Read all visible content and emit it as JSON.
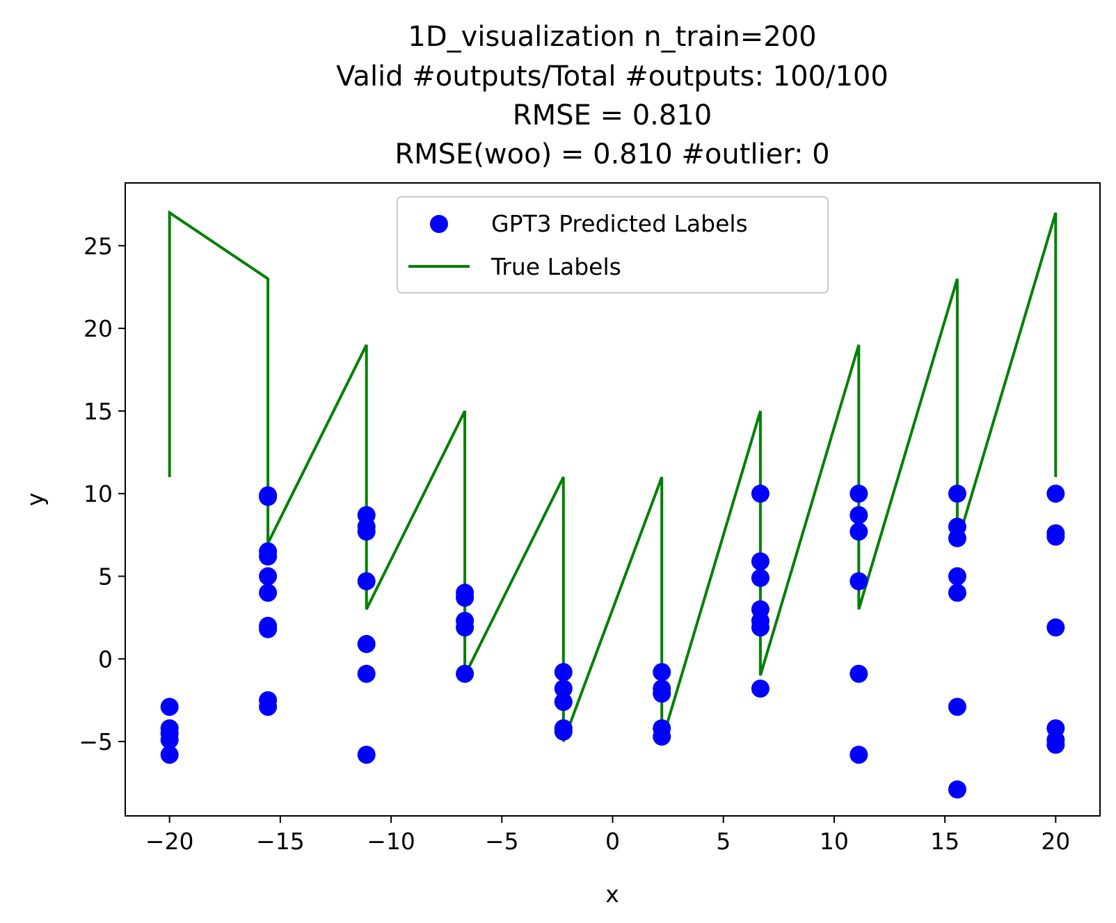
{
  "chart_data": {
    "type": "scatter",
    "title_lines": [
      "1D_visualization  n_train=200",
      "Valid #outputs/Total #outputs: 100/100",
      "RMSE       = 0.810",
      "RMSE(woo) = 0.810   #outlier: 0"
    ],
    "xlabel": "x",
    "ylabel": "y",
    "xlim": [
      -22,
      22
    ],
    "ylim": [
      -9.5,
      28.8
    ],
    "xticks": [
      -20,
      -15,
      -10,
      -5,
      0,
      5,
      10,
      15,
      20
    ],
    "xtick_labels": [
      "−20",
      "−15",
      "−10",
      "−5",
      "0",
      "5",
      "10",
      "15",
      "20"
    ],
    "yticks": [
      -5,
      0,
      5,
      10,
      15,
      20,
      25
    ],
    "ytick_labels": [
      "−5",
      "0",
      "5",
      "10",
      "15",
      "20",
      "25"
    ],
    "grid": false,
    "legend": {
      "placement": "top-center",
      "entries": [
        "GPT3 Predicted Labels",
        "True Labels"
      ]
    },
    "colors": {
      "scatter": "#0000ff",
      "line": "#008000"
    },
    "true_line": {
      "name": "True Labels",
      "x": [
        -20,
        -20,
        -15.56,
        -15.56,
        -11.11,
        -11.11,
        -6.67,
        -6.67,
        -2.22,
        -2.22,
        2.22,
        2.22,
        6.67,
        6.67,
        11.11,
        11.11,
        15.56,
        15.56,
        20,
        20
      ],
      "y": [
        11,
        27,
        23,
        7,
        19,
        3,
        15,
        -1,
        11,
        -5,
        11,
        -5,
        15,
        -1,
        19,
        3,
        23,
        7,
        27,
        11
      ]
    },
    "series": [
      {
        "name": "GPT3 Predicted Labels",
        "points": [
          [
            -20,
            -2.9
          ],
          [
            -20,
            -4.2
          ],
          [
            -20,
            -4.5
          ],
          [
            -20,
            -4.9
          ],
          [
            -20,
            -5.8
          ],
          [
            -15.56,
            9.8
          ],
          [
            -15.56,
            9.9
          ],
          [
            -15.56,
            6.5
          ],
          [
            -15.56,
            6.2
          ],
          [
            -15.56,
            5.0
          ],
          [
            -15.56,
            4.0
          ],
          [
            -15.56,
            2.0
          ],
          [
            -15.56,
            1.8
          ],
          [
            -15.56,
            -2.5
          ],
          [
            -15.56,
            -2.9
          ],
          [
            -11.11,
            8.7
          ],
          [
            -11.11,
            8.0
          ],
          [
            -11.11,
            7.7
          ],
          [
            -11.11,
            4.7
          ],
          [
            -11.11,
            0.9
          ],
          [
            -11.11,
            -0.9
          ],
          [
            -11.11,
            -5.8
          ],
          [
            -6.67,
            4.0
          ],
          [
            -6.67,
            3.7
          ],
          [
            -6.67,
            2.3
          ],
          [
            -6.67,
            1.9
          ],
          [
            -6.67,
            -0.9
          ],
          [
            -2.22,
            -0.8
          ],
          [
            -2.22,
            -1.8
          ],
          [
            -2.22,
            -2.6
          ],
          [
            -2.22,
            -4.2
          ],
          [
            -2.22,
            -4.4
          ],
          [
            2.22,
            -0.8
          ],
          [
            2.22,
            -1.8
          ],
          [
            2.22,
            -2.1
          ],
          [
            2.22,
            -4.2
          ],
          [
            2.22,
            -4.7
          ],
          [
            6.67,
            10.0
          ],
          [
            6.67,
            5.9
          ],
          [
            6.67,
            4.9
          ],
          [
            6.67,
            3.0
          ],
          [
            6.67,
            2.3
          ],
          [
            6.67,
            1.9
          ],
          [
            6.67,
            -1.8
          ],
          [
            11.11,
            10.0
          ],
          [
            11.11,
            8.7
          ],
          [
            11.11,
            7.7
          ],
          [
            11.11,
            4.7
          ],
          [
            11.11,
            -0.9
          ],
          [
            11.11,
            -5.8
          ],
          [
            15.56,
            10.0
          ],
          [
            15.56,
            8.0
          ],
          [
            15.56,
            7.3
          ],
          [
            15.56,
            5.0
          ],
          [
            15.56,
            4.0
          ],
          [
            15.56,
            -2.9
          ],
          [
            15.56,
            -7.9
          ],
          [
            20,
            10.0
          ],
          [
            20,
            7.6
          ],
          [
            20,
            7.4
          ],
          [
            20,
            1.9
          ],
          [
            20,
            -4.2
          ],
          [
            20,
            -4.9
          ],
          [
            20,
            -5.2
          ]
        ]
      }
    ]
  }
}
